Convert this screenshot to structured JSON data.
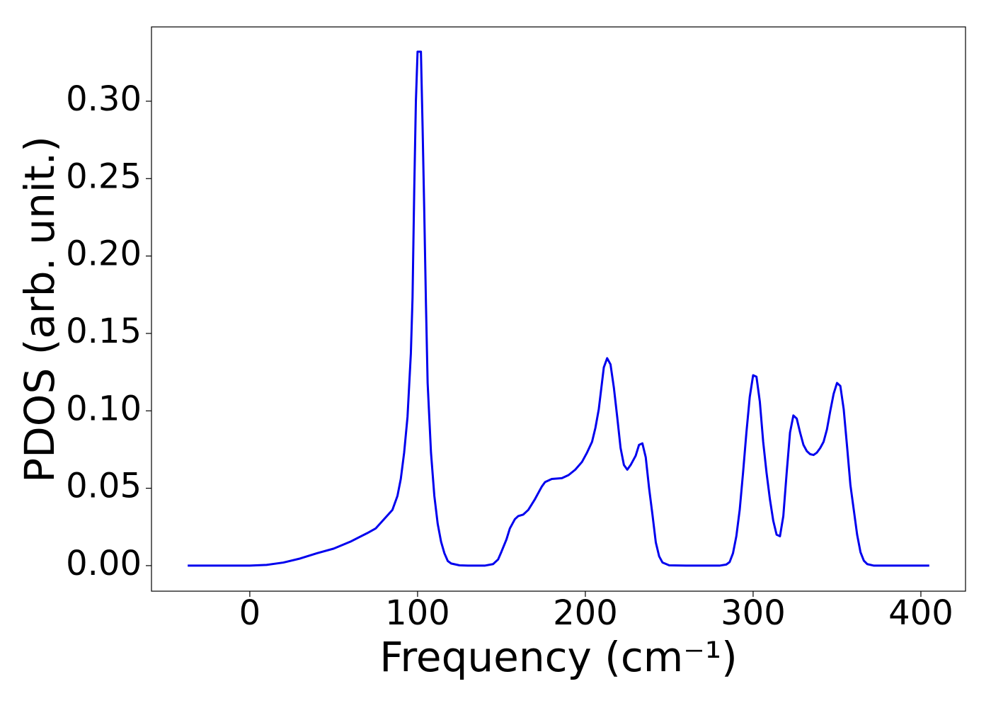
{
  "chart_data": {
    "type": "line",
    "xlabel": "Frequency (cm⁻¹)",
    "ylabel": "PDOS (arb. unit.)",
    "x": [
      -37,
      0,
      10,
      20,
      30,
      40,
      50,
      60,
      70,
      75,
      80,
      85,
      88,
      90,
      92,
      94,
      96,
      97,
      98,
      99,
      100,
      102,
      103,
      104,
      105,
      106,
      108,
      110,
      112,
      114,
      116,
      118,
      120,
      125,
      130,
      140,
      145,
      148,
      150,
      153,
      155,
      158,
      160,
      163,
      166,
      170,
      174,
      176,
      180,
      186,
      190,
      194,
      198,
      201,
      204,
      206,
      208,
      211,
      213,
      215,
      217,
      219,
      221,
      223,
      225,
      227,
      230,
      232,
      234,
      236,
      238,
      240,
      242,
      244,
      246,
      250,
      260,
      280,
      284,
      286,
      288,
      290,
      292,
      294,
      296,
      298,
      300,
      302,
      304,
      306,
      308,
      310,
      312,
      314,
      316,
      318,
      320,
      322,
      324,
      326,
      328,
      330,
      332,
      334,
      336,
      338,
      340,
      342,
      344,
      346,
      348,
      350,
      352,
      354,
      356,
      358,
      360,
      362,
      364,
      366,
      368,
      372,
      380,
      405
    ],
    "series": [
      {
        "name": "PDOS",
        "color": "#0000ee",
        "values": [
          0,
          0,
          0.0005,
          0.002,
          0.0046,
          0.008,
          0.011,
          0.0155,
          0.021,
          0.024,
          0.03,
          0.036,
          0.045,
          0.056,
          0.073,
          0.096,
          0.137,
          0.173,
          0.242,
          0.3,
          0.332,
          0.332,
          0.283,
          0.228,
          0.169,
          0.118,
          0.073,
          0.045,
          0.027,
          0.0155,
          0.008,
          0.003,
          0.0014,
          0.0002,
          0,
          0,
          0.001,
          0.004,
          0.009,
          0.017,
          0.024,
          0.03,
          0.032,
          0.033,
          0.036,
          0.043,
          0.051,
          0.054,
          0.056,
          0.0565,
          0.0585,
          0.062,
          0.067,
          0.073,
          0.08,
          0.089,
          0.101,
          0.128,
          0.134,
          0.13,
          0.115,
          0.096,
          0.076,
          0.065,
          0.062,
          0.065,
          0.071,
          0.078,
          0.079,
          0.07,
          0.05,
          0.033,
          0.015,
          0.006,
          0.002,
          0.0002,
          0,
          0,
          0.0007,
          0.0023,
          0.008,
          0.019,
          0.036,
          0.06,
          0.086,
          0.109,
          0.123,
          0.122,
          0.106,
          0.08,
          0.06,
          0.043,
          0.029,
          0.02,
          0.019,
          0.032,
          0.06,
          0.086,
          0.097,
          0.095,
          0.086,
          0.078,
          0.074,
          0.072,
          0.0715,
          0.073,
          0.076,
          0.08,
          0.088,
          0.1,
          0.111,
          0.118,
          0.116,
          0.101,
          0.077,
          0.052,
          0.036,
          0.02,
          0.0087,
          0.0032,
          0.001,
          0,
          0,
          0
        ]
      }
    ],
    "xlim": [
      -58.6,
      426.6
    ],
    "ylim": [
      -0.0165,
      0.348
    ],
    "xticks": [
      0,
      100,
      200,
      300,
      400
    ],
    "yticks": [
      {
        "value": 0,
        "label": "0.00"
      },
      {
        "value": 0.05,
        "label": "0.05"
      },
      {
        "value": 0.1,
        "label": "0.10"
      },
      {
        "value": 0.15,
        "label": "0.15"
      },
      {
        "value": 0.2,
        "label": "0.20"
      },
      {
        "value": 0.25,
        "label": "0.25"
      },
      {
        "value": 0.3,
        "label": "0.30"
      }
    ],
    "grid": false
  }
}
